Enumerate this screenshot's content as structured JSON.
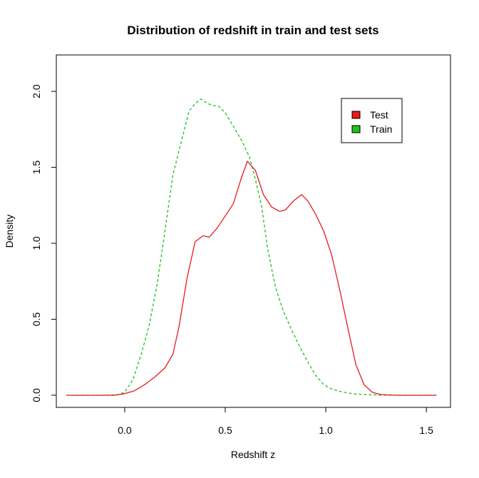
{
  "chart_data": {
    "type": "line",
    "title": "Distribution of redshift in train and test sets",
    "xlabel": "Redshift z",
    "ylabel": "Density",
    "xlim": [
      -0.34,
      1.62
    ],
    "ylim": [
      -0.08,
      2.24
    ],
    "xticks": [
      {
        "value": 0.0,
        "label": "0.0"
      },
      {
        "value": 0.5,
        "label": "0.5"
      },
      {
        "value": 1.0,
        "label": "1.0"
      },
      {
        "value": 1.5,
        "label": "1.5"
      }
    ],
    "yticks": [
      {
        "value": 0.0,
        "label": "0.0"
      },
      {
        "value": 0.5,
        "label": "0.5"
      },
      {
        "value": 1.0,
        "label": "1.0"
      },
      {
        "value": 1.5,
        "label": "1.5"
      },
      {
        "value": 2.0,
        "label": "2.0"
      }
    ],
    "grid": false,
    "legend_position": "top-right",
    "series": [
      {
        "name": "Test",
        "color": "#e8191a",
        "dash": "solid",
        "x": [
          -0.29,
          -0.2,
          -0.1,
          -0.05,
          0.0,
          0.05,
          0.1,
          0.15,
          0.2,
          0.24,
          0.27,
          0.31,
          0.35,
          0.39,
          0.42,
          0.46,
          0.5,
          0.54,
          0.58,
          0.61,
          0.65,
          0.69,
          0.73,
          0.77,
          0.8,
          0.84,
          0.88,
          0.91,
          0.95,
          0.99,
          1.03,
          1.07,
          1.11,
          1.15,
          1.19,
          1.23,
          1.27,
          1.35,
          1.45,
          1.55
        ],
        "y": [
          0.0,
          0.0,
          0.0,
          0.0,
          0.01,
          0.03,
          0.07,
          0.12,
          0.18,
          0.27,
          0.45,
          0.77,
          1.01,
          1.05,
          1.04,
          1.1,
          1.18,
          1.26,
          1.43,
          1.54,
          1.48,
          1.32,
          1.24,
          1.21,
          1.22,
          1.28,
          1.32,
          1.28,
          1.19,
          1.08,
          0.92,
          0.69,
          0.44,
          0.2,
          0.07,
          0.02,
          0.005,
          0.0,
          0.0,
          0.0
        ]
      },
      {
        "name": "Train",
        "color": "#1fc21f",
        "dash": "dashed",
        "x": [
          -0.29,
          -0.2,
          -0.1,
          -0.03,
          0.0,
          0.04,
          0.08,
          0.12,
          0.16,
          0.2,
          0.24,
          0.28,
          0.32,
          0.35,
          0.38,
          0.4,
          0.43,
          0.47,
          0.5,
          0.54,
          0.58,
          0.62,
          0.65,
          0.68,
          0.71,
          0.75,
          0.79,
          0.83,
          0.87,
          0.91,
          0.95,
          0.99,
          1.03,
          1.07,
          1.11,
          1.15,
          1.2,
          1.3,
          1.45,
          1.55
        ],
        "y": [
          0.0,
          0.0,
          0.0,
          0.005,
          0.02,
          0.1,
          0.26,
          0.45,
          0.72,
          1.08,
          1.45,
          1.66,
          1.87,
          1.92,
          1.95,
          1.93,
          1.91,
          1.9,
          1.86,
          1.77,
          1.68,
          1.57,
          1.42,
          1.25,
          0.97,
          0.71,
          0.55,
          0.43,
          0.32,
          0.22,
          0.13,
          0.07,
          0.04,
          0.025,
          0.015,
          0.008,
          0.004,
          0.0,
          0.0,
          0.0
        ]
      }
    ]
  }
}
